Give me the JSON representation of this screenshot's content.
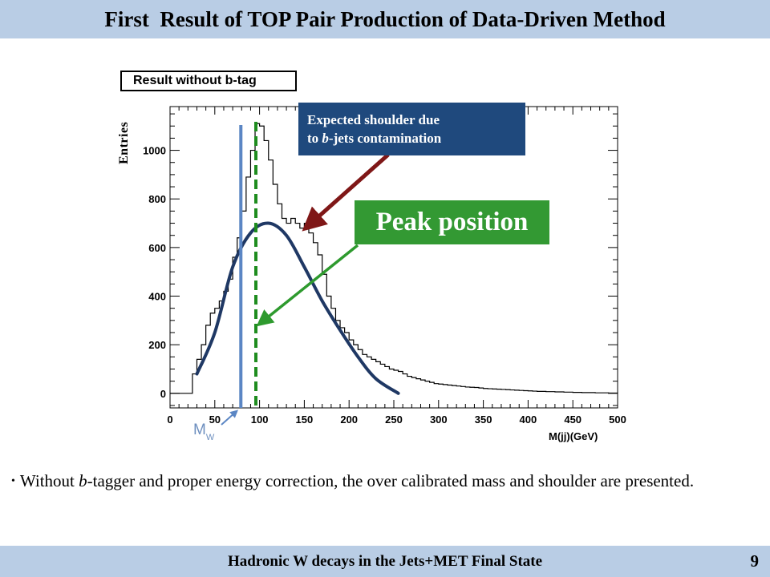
{
  "slide": {
    "title": "First  Result of TOP Pair Production of Data-Driven Method",
    "footer": "Hadronic W decays in the Jets+MET Final State",
    "page_number": "9",
    "bullet_parts": [
      "Without ",
      "b",
      "-tagger and proper energy correction, the over calibrated mass and shoulder are presented."
    ],
    "callout_shoulder_parts": [
      "Expected shoulder  due",
      "to ",
      "b",
      "-jets contamination"
    ],
    "callout_peak": "Peak position",
    "mw_label": "M",
    "mw_sub": "W"
  },
  "colors": {
    "title_bg": "#b9cde5",
    "callout_blue": "#1f497d",
    "callout_green": "#339933",
    "arrow_red": "#7f1717",
    "arrow_green": "#2e9a2e",
    "fit_curve": "#1f3864",
    "mw_line": "#5b86c4",
    "peak_line": "#1e8c1e"
  },
  "chart_data": {
    "type": "histogram",
    "title": "Result without b-tag",
    "xlabel": "M(jj)(GeV)",
    "ylabel": "Entries",
    "xlim": [
      0,
      500
    ],
    "ylim": [
      -60,
      1180
    ],
    "xticks": [
      0,
      50,
      100,
      150,
      200,
      250,
      300,
      350,
      400,
      450,
      500
    ],
    "yticks": [
      0,
      200,
      400,
      600,
      800,
      1000
    ],
    "bin_width": 5,
    "bins_x_start": 20,
    "values": [
      0,
      80,
      140,
      200,
      280,
      330,
      350,
      380,
      420,
      470,
      560,
      640,
      750,
      890,
      1000,
      1110,
      1100,
      1040,
      960,
      860,
      780,
      720,
      700,
      720,
      700,
      680,
      700,
      660,
      620,
      570,
      490,
      400,
      350,
      300,
      270,
      250,
      220,
      200,
      180,
      160,
      150,
      140,
      130,
      120,
      110,
      100,
      95,
      90,
      80,
      70,
      65,
      60,
      55,
      50,
      45,
      40,
      38,
      36,
      34,
      32,
      30,
      28,
      26,
      25,
      24,
      22,
      20,
      19,
      18,
      17,
      16,
      15,
      14,
      13,
      12,
      11,
      10,
      9,
      8,
      8,
      7,
      7,
      6,
      6,
      5,
      5,
      4,
      4,
      3,
      3,
      3,
      2,
      2,
      2,
      1,
      1
    ],
    "fit_curve": {
      "x": [
        30,
        50,
        70,
        90,
        110,
        130,
        150,
        170,
        190,
        210,
        230,
        255
      ],
      "y": [
        80,
        250,
        520,
        660,
        700,
        650,
        520,
        380,
        260,
        150,
        60,
        0
      ]
    },
    "mw_line_x": 80,
    "peak_line_x": 95,
    "annotations": [
      "Expected shoulder  due to b-jets contamination",
      "Peak position"
    ]
  }
}
